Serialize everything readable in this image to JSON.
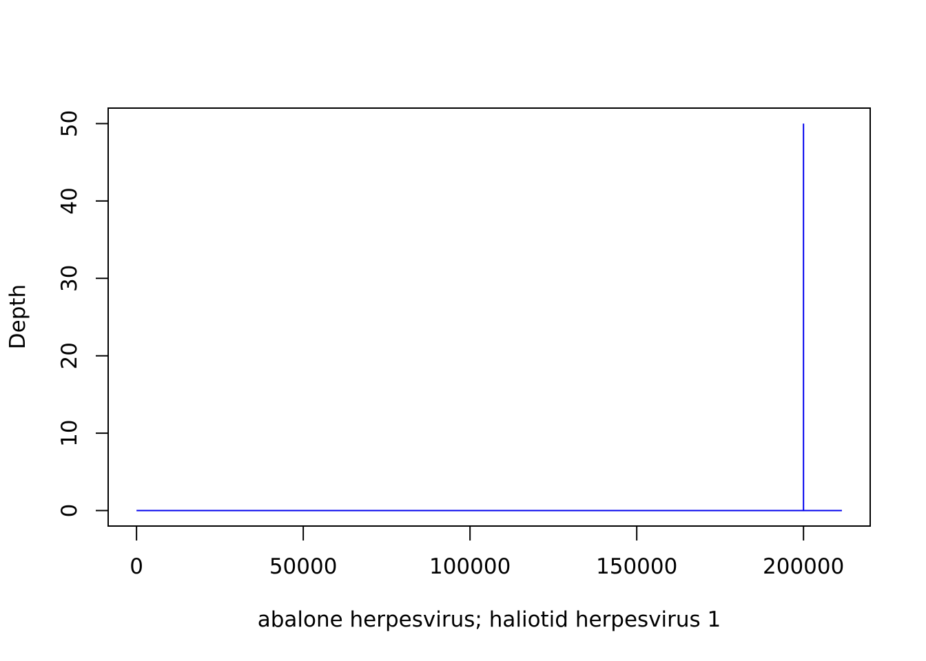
{
  "chart_data": {
    "type": "line",
    "title": "",
    "xlabel": "abalone herpesvirus; haliotid herpesvirus 1",
    "ylabel": "Depth",
    "xlim": [
      -8500,
      220000
    ],
    "ylim": [
      -2,
      52
    ],
    "x_ticks": [
      0,
      50000,
      100000,
      150000,
      200000
    ],
    "y_ticks": [
      0,
      10,
      20,
      30,
      40,
      50
    ],
    "grid": false,
    "series": [
      {
        "color": "#0000ee",
        "x": [
          0,
          199999,
          200000,
          200001,
          211518
        ],
        "y": [
          0,
          0,
          50,
          0,
          0
        ]
      }
    ]
  }
}
